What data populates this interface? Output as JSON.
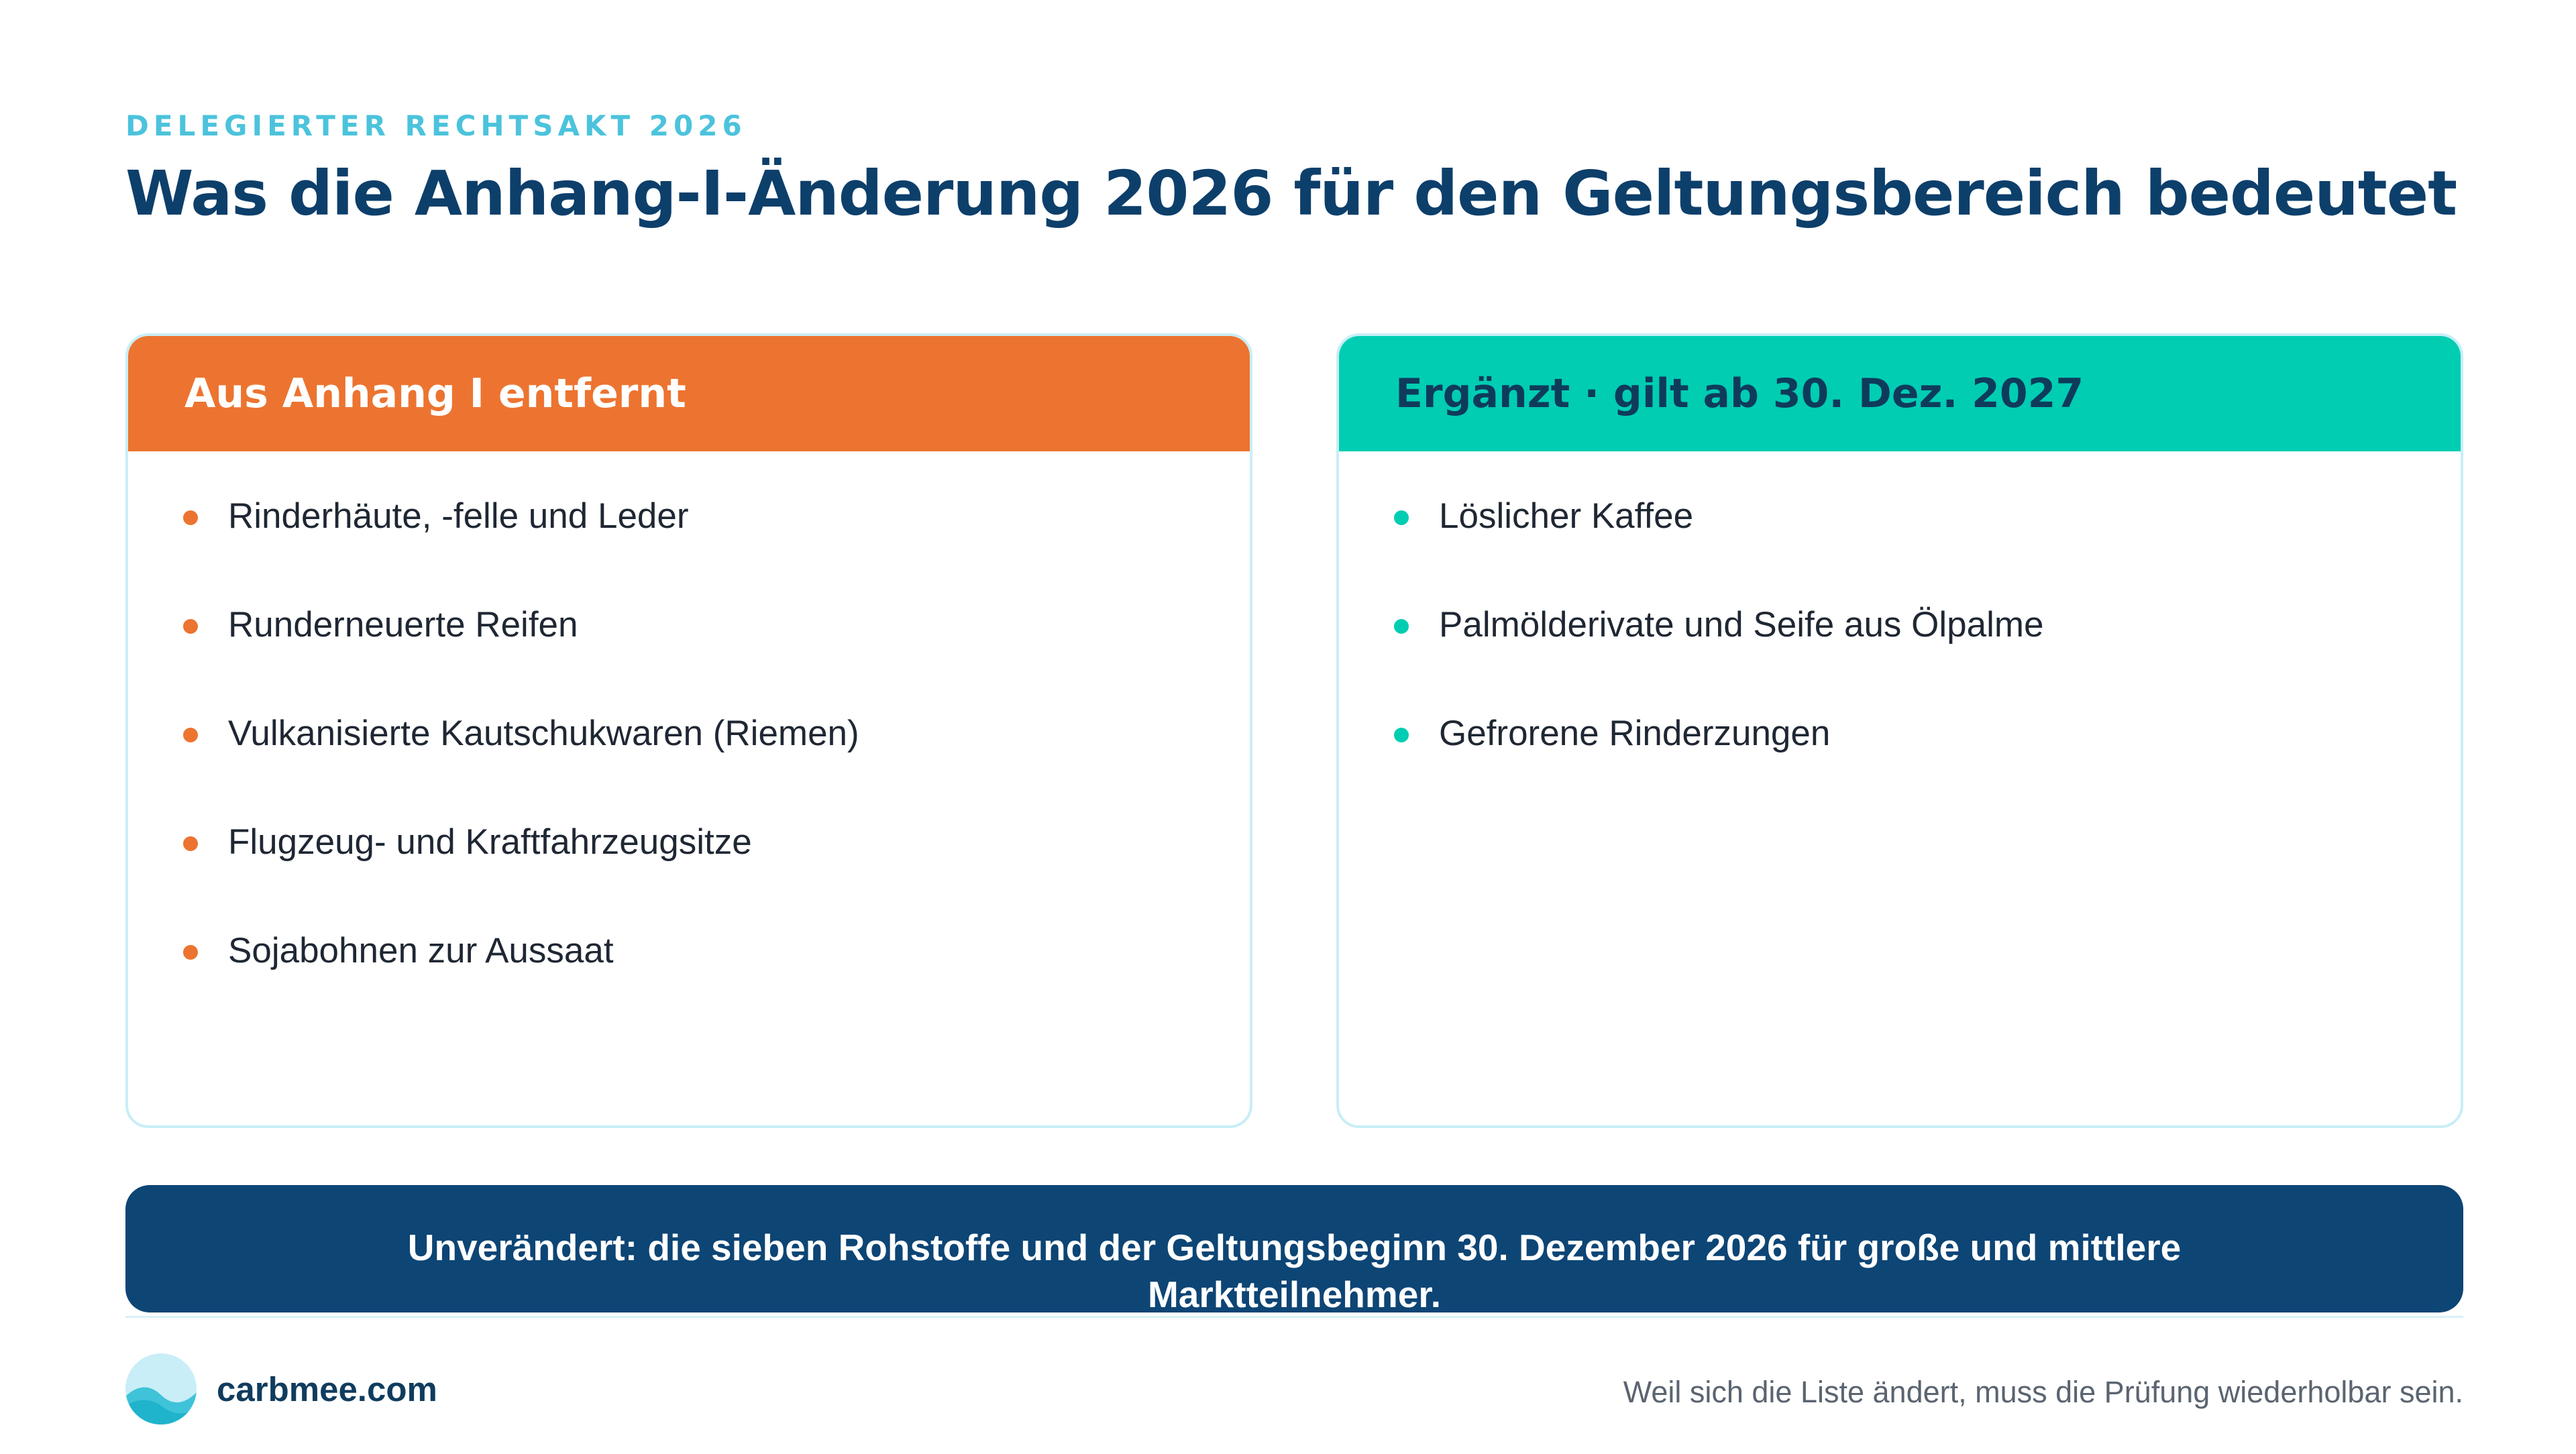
{
  "header": {
    "eyebrow": "DELEGIERTER RECHTSAKT 2026",
    "title": "Was die Anhang-I-Änderung 2026 für den Geltungsbereich bedeutet"
  },
  "removed": {
    "heading": "Aus Anhang I entfernt",
    "color": "#ec7430",
    "items": [
      "Rinderhäute, -felle und Leder",
      "Runderneuerte Reifen",
      "Vulkanisierte Kautschukwaren (Riemen)",
      "Flugzeug- und Kraftfahrzeugsitze",
      "Sojabohnen zur Aussaat"
    ]
  },
  "added": {
    "heading": "Ergänzt · gilt ab 30. Dez. 2027",
    "color": "#00cdb2",
    "items": [
      "Löslicher Kaffee",
      "Palmölderivate und Seife aus Ölpalme",
      "Gefrorene Rinderzungen"
    ]
  },
  "banner": {
    "text": "Unverändert: die sieben Rohstoffe und der Geltungsbeginn 30. Dezember 2026 für große und mittlere Marktteilnehmer."
  },
  "footer": {
    "logo_icon": "wave-circle-logo-icon",
    "brand": "carbmee.com",
    "tagline": "Weil sich die Liste ändert, muss die Prüfung wiederholbar sein."
  },
  "colors": {
    "navy": "#0d3f6b",
    "orange": "#ec7430",
    "teal": "#00cdb2",
    "banner": "#0d4575"
  }
}
